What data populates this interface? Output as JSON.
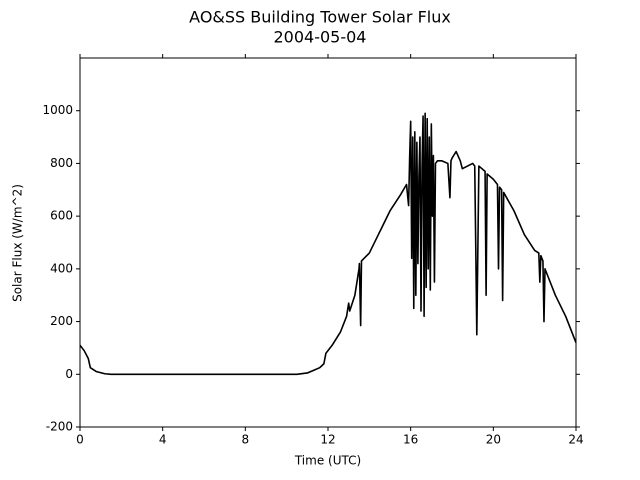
{
  "chart_data": {
    "type": "line",
    "title": "AO&SS Building Tower Solar Flux",
    "subtitle": "2004-05-04",
    "xlabel": "Time (UTC)",
    "ylabel": "Solar Flux (W/m^2)",
    "xlim": [
      0,
      24
    ],
    "xticks": [
      0,
      4,
      8,
      12,
      16,
      20,
      24
    ],
    "ylim": [
      -200,
      1200
    ],
    "yticks": [
      -200,
      0,
      200,
      400,
      600,
      800,
      1000
    ],
    "grid": false,
    "series": [
      {
        "color": "#000000",
        "x": [
          0,
          0.2,
          0.4,
          0.5,
          0.8,
          1.2,
          1.5,
          3,
          6,
          9,
          10.5,
          11,
          11.3,
          11.6,
          11.8,
          11.9,
          12.2,
          12.6,
          12.9,
          13,
          13.05,
          13.3,
          13.5,
          13.52,
          13.58,
          13.62,
          14,
          14.5,
          15,
          15.5,
          15.8,
          15.9,
          15.95,
          16,
          16.05,
          16.1,
          16.15,
          16.2,
          16.25,
          16.3,
          16.35,
          16.4,
          16.45,
          16.5,
          16.55,
          16.6,
          16.65,
          16.7,
          16.75,
          16.8,
          16.85,
          16.9,
          16.95,
          17,
          17.05,
          17.1,
          17.15,
          17.2,
          17.3,
          17.5,
          17.8,
          17.9,
          17.95,
          18,
          18.2,
          18.4,
          18.5,
          19,
          19.1,
          19.15,
          19.2,
          19.3,
          19.6,
          19.65,
          19.7,
          20,
          20.2,
          20.25,
          20.3,
          20.4,
          20.45,
          20.5,
          21,
          21.5,
          22,
          22.2,
          22.25,
          22.3,
          22.4,
          22.45,
          22.5,
          23,
          23.5,
          24
        ],
        "values": [
          110,
          90,
          60,
          25,
          10,
          2,
          0,
          0,
          0,
          0,
          0,
          5,
          15,
          25,
          40,
          80,
          110,
          160,
          220,
          270,
          240,
          300,
          400,
          420,
          185,
          430,
          460,
          540,
          620,
          680,
          720,
          640,
          820,
          960,
          440,
          900,
          250,
          920,
          300,
          880,
          420,
          750,
          900,
          240,
          780,
          980,
          220,
          990,
          330,
          970,
          400,
          900,
          320,
          950,
          600,
          830,
          350,
          800,
          810,
          810,
          800,
          670,
          810,
          820,
          845,
          810,
          780,
          800,
          790,
          480,
          150,
          790,
          770,
          300,
          760,
          740,
          720,
          400,
          710,
          700,
          280,
          690,
          620,
          530,
          470,
          460,
          350,
          450,
          430,
          200,
          400,
          300,
          220,
          120
        ]
      }
    ]
  }
}
